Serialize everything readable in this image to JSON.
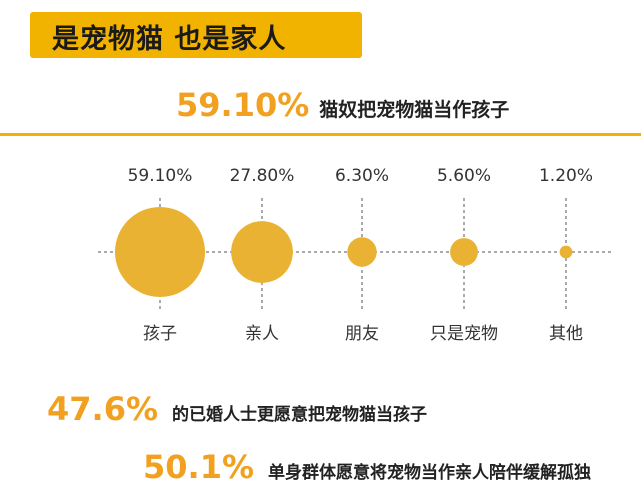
{
  "header": {
    "title": "是宠物猫 也是家人"
  },
  "stats": [
    {
      "percent": "59.10%",
      "text": "猫奴把宠物猫当作孩子"
    },
    {
      "percent": "47.6%",
      "text": "的已婚人士更愿意把宠物猫当孩子"
    },
    {
      "percent": "50.1%",
      "text": "单身群体愿意将宠物当作亲人陪伴缓解孤独"
    }
  ],
  "colors": {
    "accent": "#f2b200",
    "bubble": "#eab232",
    "percent_text": "#f2a020"
  },
  "chart_data": {
    "type": "bubble",
    "categories": [
      "孩子",
      "亲人",
      "朋友",
      "只是宠物",
      "其他"
    ],
    "values": [
      59.1,
      27.8,
      6.3,
      5.6,
      1.2
    ],
    "value_labels": [
      "59.10%",
      "27.80%",
      "6.30%",
      "5.60%",
      "1.20%"
    ],
    "title": "",
    "xlabel": "",
    "ylabel": "",
    "grid": true
  }
}
